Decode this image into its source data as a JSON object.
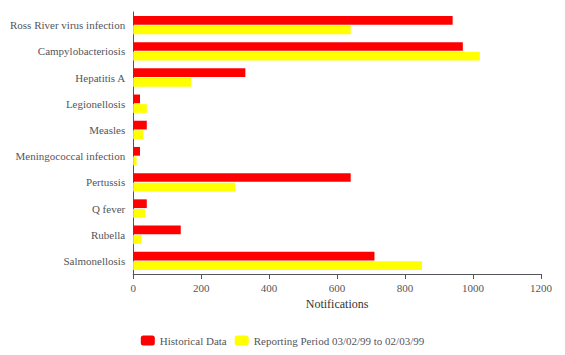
{
  "chart_data": {
    "type": "bar",
    "orientation": "horizontal",
    "categories": [
      "Ross River virus infection",
      "Campylobacteriosis",
      "Hepatitis A",
      "Legionellosis",
      "Measles",
      "Meningococcal infection",
      "Pertussis",
      "Q fever",
      "Rubella",
      "Salmonellosis"
    ],
    "series": [
      {
        "name": "Historical Data",
        "color": "#FF0000",
        "values": [
          940,
          970,
          330,
          20,
          40,
          20,
          640,
          40,
          140,
          710
        ]
      },
      {
        "name": "Reporting Period 03/02/99 to 02/03/99",
        "color": "#FFFF00",
        "values": [
          640,
          1020,
          170,
          40,
          30,
          10,
          300,
          35,
          25,
          850
        ]
      }
    ],
    "xlabel": "Notifications",
    "xlim": [
      0,
      1200
    ],
    "xticks": [
      0,
      200,
      400,
      600,
      800,
      1000,
      1200
    ],
    "grid": false,
    "legend": "bottom"
  }
}
